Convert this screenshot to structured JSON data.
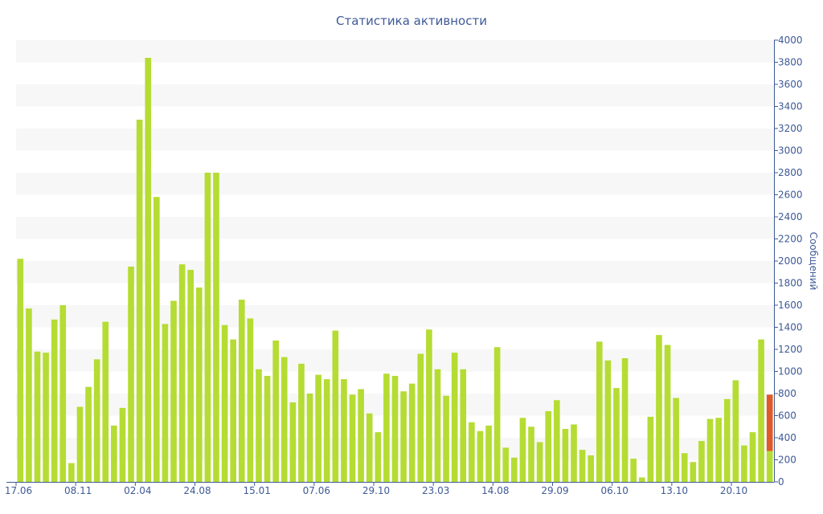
{
  "chart_data": {
    "type": "bar",
    "title": "Статистика активности",
    "xlabel": "",
    "ylabel": "Сообщений",
    "ylim": [
      0,
      4000
    ],
    "y_ticks": [
      0,
      200,
      400,
      600,
      800,
      1000,
      1200,
      1400,
      1600,
      1800,
      2000,
      2200,
      2400,
      2600,
      2800,
      3000,
      3200,
      3400,
      3600,
      3800,
      4000
    ],
    "x_tick_labels": [
      {
        "label": "17.06",
        "index": 0
      },
      {
        "label": "08.11",
        "index": 7
      },
      {
        "label": "02.04",
        "index": 14
      },
      {
        "label": "24.08",
        "index": 21
      },
      {
        "label": "15.01",
        "index": 28
      },
      {
        "label": "07.06",
        "index": 35
      },
      {
        "label": "29.10",
        "index": 42
      },
      {
        "label": "23.03",
        "index": 49
      },
      {
        "label": "14.08",
        "index": 56
      },
      {
        "label": "29.09",
        "index": 63
      },
      {
        "label": "06.10",
        "index": 70
      },
      {
        "label": "13.10",
        "index": 77
      },
      {
        "label": "20.10",
        "index": 84
      }
    ],
    "grid": "alternating horizontal bands",
    "axis_position": "right",
    "bar_color": "#b5dc33",
    "highlight_color": "#e0592a",
    "values": [
      2020,
      1570,
      1180,
      1170,
      1470,
      1600,
      170,
      680,
      860,
      1110,
      1450,
      510,
      670,
      1950,
      3280,
      3840,
      2580,
      1430,
      1640,
      1970,
      1920,
      1760,
      2800,
      2800,
      1420,
      1290,
      1650,
      1480,
      1020,
      960,
      1280,
      1130,
      720,
      1070,
      800,
      970,
      930,
      1370,
      930,
      790,
      840,
      620,
      450,
      980,
      960,
      820,
      890,
      1160,
      1380,
      1020,
      780,
      1170,
      1020,
      540,
      460,
      510,
      1220,
      310,
      220,
      580,
      500,
      360,
      640,
      740,
      480,
      520,
      290,
      240,
      1270,
      1100,
      850,
      1120,
      210,
      40,
      590,
      1330,
      1240,
      760,
      260,
      180,
      370,
      570,
      580,
      750,
      920,
      330,
      450,
      1290,
      280
    ],
    "last_bar_extra": 510
  }
}
